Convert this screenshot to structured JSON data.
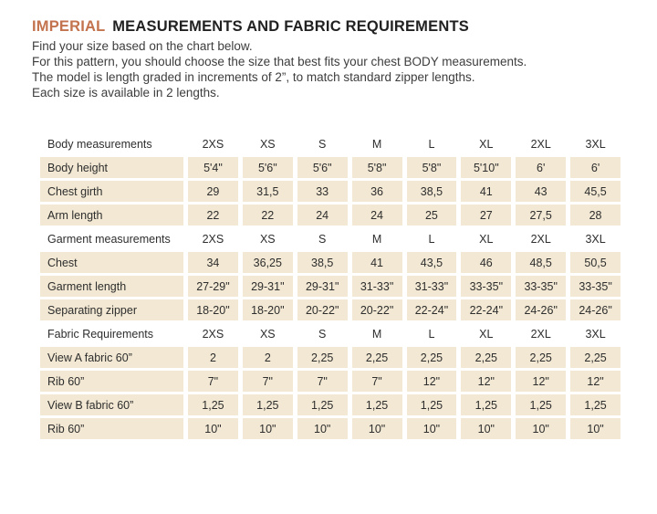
{
  "page": {
    "title_accent": "IMPERIAL",
    "title_rest": "MEASUREMENTS AND FABRIC REQUIREMENTS",
    "intro_lines": [
      "Find your size based on the chart below.",
      "For this pattern, you should choose the size that best fits your chest BODY measurements.",
      "The model is length graded in increments of 2”, to match standard zipper lengths.",
      "Each size is available in 2 lengths."
    ]
  },
  "colors": {
    "accent_orange": "#c3734d",
    "row_beige": "#f2e8d3",
    "text_dark": "#212121",
    "text_body": "#3d3d3d"
  },
  "table": {
    "sizes": [
      "2XS",
      "XS",
      "S",
      "M",
      "L",
      "XL",
      "2XL",
      "3XL"
    ],
    "rows": [
      {
        "type": "header",
        "label": "Body measurements",
        "values": [
          "2XS",
          "XS",
          "S",
          "M",
          "L",
          "XL",
          "2XL",
          "3XL"
        ]
      },
      {
        "type": "data",
        "label": "Body height",
        "values": [
          "5'4\"",
          "5'6\"",
          "5'6\"",
          "5'8\"",
          "5'8\"",
          "5'10\"",
          "6'",
          "6'"
        ]
      },
      {
        "type": "data",
        "label": "Chest girth",
        "values": [
          "29",
          "31,5",
          "33",
          "36",
          "38,5",
          "41",
          "43",
          "45,5"
        ]
      },
      {
        "type": "data",
        "label": "Arm length",
        "values": [
          "22",
          "22",
          "24",
          "24",
          "25",
          "27",
          "27,5",
          "28"
        ]
      },
      {
        "type": "header",
        "label": "Garment measurements",
        "values": [
          "2XS",
          "XS",
          "S",
          "M",
          "L",
          "XL",
          "2XL",
          "3XL"
        ]
      },
      {
        "type": "data",
        "label": "Chest",
        "values": [
          "34",
          "36,25",
          "38,5",
          "41",
          "43,5",
          "46",
          "48,5",
          "50,5"
        ]
      },
      {
        "type": "data",
        "label": "Garment length",
        "values": [
          "27-29\"",
          "29-31\"",
          "29-31\"",
          "31-33\"",
          "31-33\"",
          "33-35\"",
          "33-35\"",
          "33-35\""
        ]
      },
      {
        "type": "data",
        "label": "Separating zipper",
        "values": [
          "18-20\"",
          "18-20\"",
          "20-22\"",
          "20-22\"",
          "22-24\"",
          "22-24\"",
          "24-26\"",
          "24-26\""
        ]
      },
      {
        "type": "header",
        "label": "Fabric Requirements",
        "values": [
          "2XS",
          "XS",
          "S",
          "M",
          "L",
          "XL",
          "2XL",
          "3XL"
        ]
      },
      {
        "type": "data",
        "label": "View A fabric 60”",
        "values": [
          "2",
          "2",
          "2,25",
          "2,25",
          "2,25",
          "2,25",
          "2,25",
          "2,25"
        ]
      },
      {
        "type": "data",
        "label": "Rib 60”",
        "values": [
          "7\"",
          "7\"",
          "7\"",
          "7\"",
          "12\"",
          "12\"",
          "12\"",
          "12\""
        ]
      },
      {
        "type": "data",
        "label": "View B fabric 60”",
        "values": [
          "1,25",
          "1,25",
          "1,25",
          "1,25",
          "1,25",
          "1,25",
          "1,25",
          "1,25"
        ]
      },
      {
        "type": "data",
        "label": "Rib 60”",
        "values": [
          "10\"",
          "10\"",
          "10\"",
          "10\"",
          "10\"",
          "10\"",
          "10\"",
          "10\""
        ]
      }
    ]
  }
}
